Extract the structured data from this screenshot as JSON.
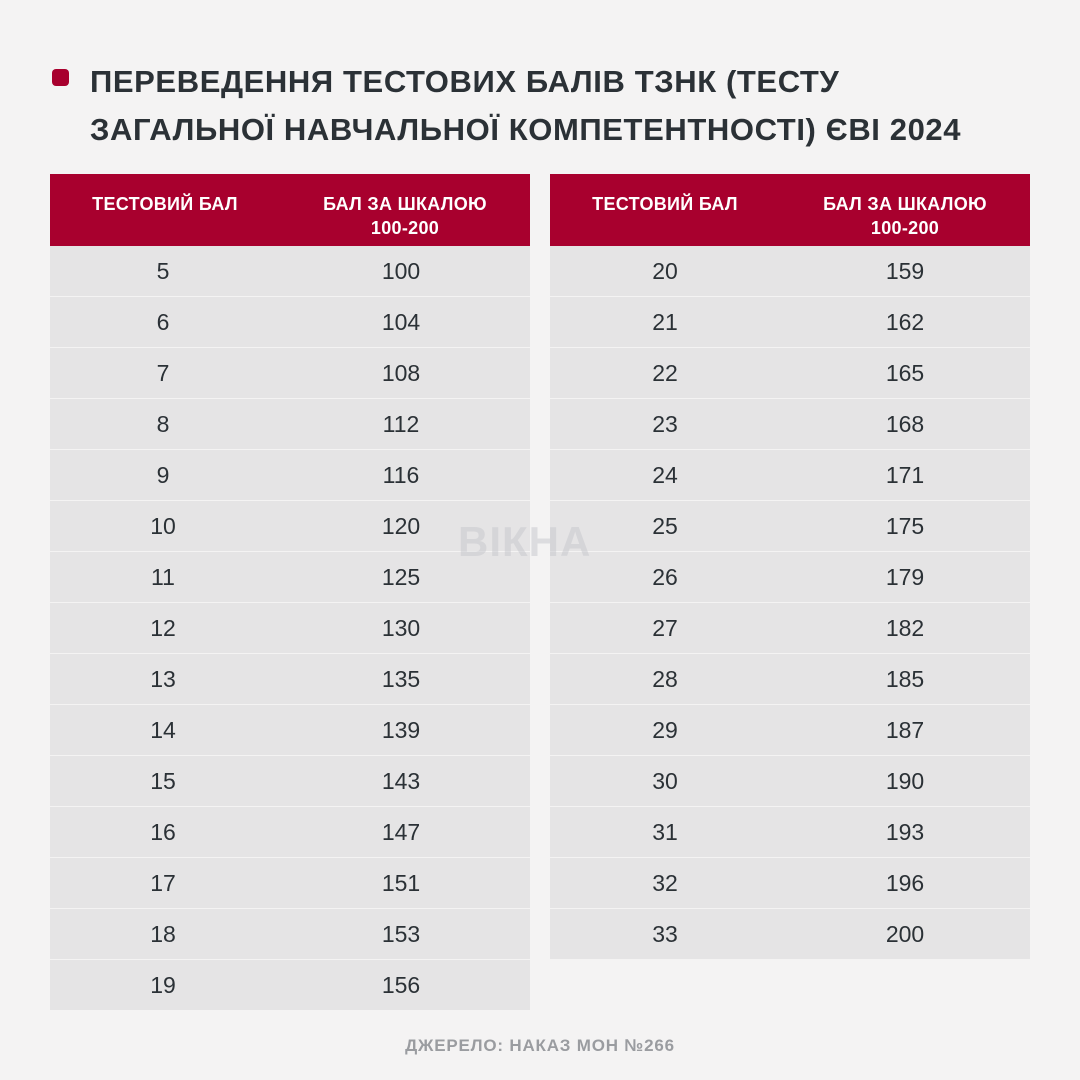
{
  "title": "ПЕРЕВЕДЕННЯ ТЕСТОВИХ БАЛІВ ТЗНК (ТЕСТУ ЗАГАЛЬНОЇ НАВЧАЛЬНОЇ КОМПЕТЕНТНОСТІ) ЄВІ 2024",
  "accent_color": "#a8002e",
  "headers": {
    "test_score": "ТЕСТОВИЙ БАЛ",
    "scale_score_line1": "БАЛ ЗА ШКАЛОЮ",
    "scale_score_line2": "100-200"
  },
  "left_table": [
    [
      "5",
      "100"
    ],
    [
      "6",
      "104"
    ],
    [
      "7",
      "108"
    ],
    [
      "8",
      "112"
    ],
    [
      "9",
      "116"
    ],
    [
      "10",
      "120"
    ],
    [
      "11",
      "125"
    ],
    [
      "12",
      "130"
    ],
    [
      "13",
      "135"
    ],
    [
      "14",
      "139"
    ],
    [
      "15",
      "143"
    ],
    [
      "16",
      "147"
    ],
    [
      "17",
      "151"
    ],
    [
      "18",
      "153"
    ],
    [
      "19",
      "156"
    ]
  ],
  "right_table": [
    [
      "20",
      "159"
    ],
    [
      "21",
      "162"
    ],
    [
      "22",
      "165"
    ],
    [
      "23",
      "168"
    ],
    [
      "24",
      "171"
    ],
    [
      "25",
      "175"
    ],
    [
      "26",
      "179"
    ],
    [
      "27",
      "182"
    ],
    [
      "28",
      "185"
    ],
    [
      "29",
      "187"
    ],
    [
      "30",
      "190"
    ],
    [
      "31",
      "193"
    ],
    [
      "32",
      "196"
    ],
    [
      "33",
      "200"
    ]
  ],
  "watermark": "ВІКНА",
  "source": "ДЖЕРЕЛО: НАКАЗ МОН №266"
}
